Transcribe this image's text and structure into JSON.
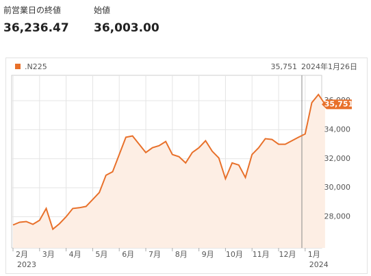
{
  "header": {
    "items": [
      {
        "label": "前営業日の終値",
        "value": "36,236.47"
      },
      {
        "label": "始値",
        "value": "36,003.00"
      }
    ]
  },
  "chart_data": {
    "type": "area",
    "categories": [
      "2月",
      null,
      null,
      null,
      "3月",
      null,
      null,
      null,
      "4月",
      null,
      null,
      null,
      "5月",
      null,
      null,
      null,
      "6月",
      null,
      null,
      null,
      "7月",
      null,
      null,
      null,
      "8月",
      null,
      null,
      null,
      "9月",
      null,
      null,
      null,
      "10月",
      null,
      null,
      null,
      "11月",
      null,
      null,
      null,
      "12月",
      null,
      null,
      null,
      "1月",
      null,
      null,
      null
    ],
    "year_labels": [
      "2023",
      "2024"
    ],
    "date_label": "2024年1月26日",
    "series": [
      {
        "name": ".N225",
        "color": "#e8702a",
        "values": [
          27430,
          27620,
          27670,
          27480,
          27760,
          28570,
          27140,
          27520,
          28000,
          28570,
          28620,
          28710,
          29190,
          29670,
          30860,
          31100,
          32290,
          33480,
          33570,
          33000,
          32430,
          32760,
          32900,
          33190,
          32290,
          32140,
          31710,
          32430,
          32760,
          33240,
          32520,
          32050,
          30620,
          31710,
          31570,
          30710,
          32290,
          32760,
          33380,
          33330,
          33000,
          33000,
          33240,
          33480,
          33710,
          35860,
          36430,
          35751
        ],
        "value_labels": [
          null,
          null,
          null,
          null,
          null,
          null,
          null,
          null,
          null,
          null,
          null,
          null,
          null,
          null,
          null,
          null,
          null,
          null,
          null,
          null,
          null,
          null,
          null,
          null,
          null,
          null,
          null,
          null,
          null,
          null,
          null,
          null,
          null,
          null,
          null,
          null,
          null,
          null,
          null,
          null,
          null,
          null,
          null,
          null,
          null,
          null,
          null,
          "35,751"
        ]
      }
    ],
    "ylim": [
      25850,
      37750
    ],
    "yticks": [
      {
        "value": 28000,
        "label": "28,000"
      },
      {
        "value": 30000,
        "label": "30,000"
      },
      {
        "value": 32000,
        "label": "32,000"
      },
      {
        "value": 34000,
        "label": "34,000"
      },
      {
        "value": 36000,
        "label": "36,000"
      }
    ],
    "grid": true
  }
}
